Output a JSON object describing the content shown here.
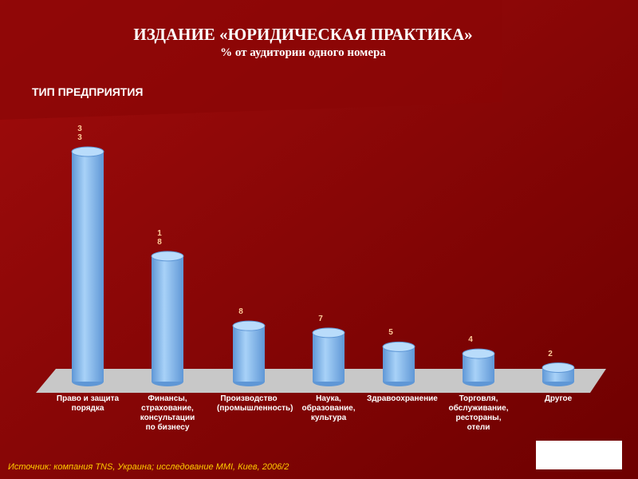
{
  "chart_data": {
    "type": "bar",
    "title": "ИЗДАНИЕ «ЮРИДИЧЕСКАЯ ПРАКТИКА»",
    "subtitle": "% от аудитории одного номера",
    "section_label": "ТИП ПРЕДПРИЯТИЯ",
    "categories": [
      "Право и защита порядка",
      "Финансы, страхование, консультации по бизнесу",
      "Производство (промышленность)",
      "Наука, образование, культура",
      "Здравоохранение",
      "Торговля, обслуживание, рестораны, отели",
      "Другое"
    ],
    "values": [
      33,
      18,
      8,
      7,
      5,
      4,
      2
    ],
    "color": "#8fc1f0",
    "source": "Источник: компания TNS, Украина; исследование MMI, Киев, 2006/2"
  }
}
